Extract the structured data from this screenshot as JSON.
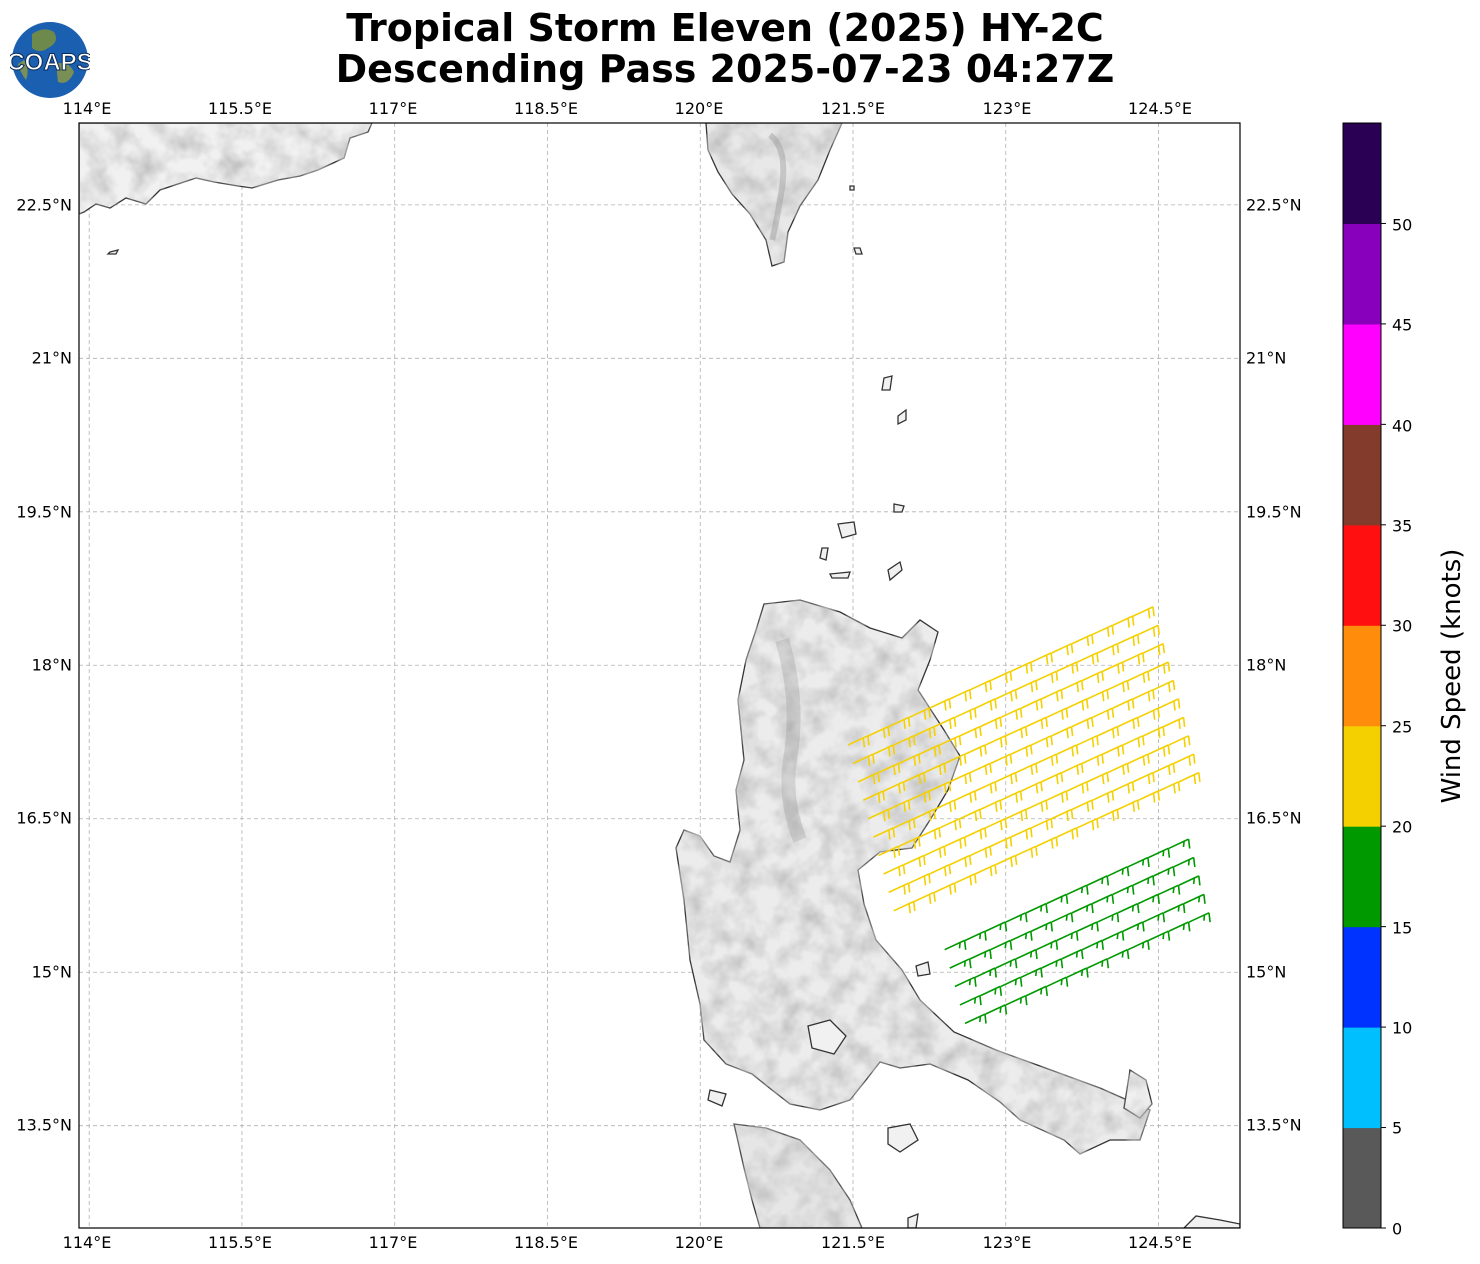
{
  "title": {
    "line1": "Tropical Storm Eleven (2025) HY-2C",
    "line2": "Descending Pass 2025-07-23 04:27Z"
  },
  "logo": {
    "text": "COAPS",
    "icon": "globe-logo-icon"
  },
  "map": {
    "lon_range": [
      113.9,
      125.3
    ],
    "lat_range": [
      12.5,
      23.3
    ],
    "lon_ticks": [
      "114°E",
      "115.5°E",
      "117°E",
      "118.5°E",
      "120°E",
      "121.5°E",
      "123°E",
      "124.5°E"
    ],
    "lat_ticks": [
      "22.5°N",
      "21°N",
      "19.5°N",
      "18°N",
      "16.5°N",
      "15°N",
      "13.5°N"
    ],
    "gridlines": true,
    "gridline_style": "dashed",
    "land_shading": "grayscale terrain",
    "barb_field": [
      {
        "lon_start": 121.9,
        "lat_start": 15.6,
        "lon_step": 0.2,
        "lat_step": 0.09,
        "rows": 10,
        "cols": 15,
        "row_lon_shift": -0.05,
        "row_lat_shift": 0.18,
        "kt": 21,
        "color": "#f5d000"
      },
      {
        "lon_start": 122.6,
        "lat_start": 14.5,
        "lon_step": 0.2,
        "lat_step": 0.09,
        "rows": 5,
        "cols": 12,
        "row_lon_shift": -0.05,
        "row_lat_shift": 0.18,
        "kt": 17,
        "color": "#009900"
      }
    ]
  },
  "colorbar": {
    "label": "Wind Speed (knots)",
    "min": 0,
    "max": 55,
    "ticks": [
      "0",
      "5",
      "10",
      "15",
      "20",
      "25",
      "30",
      "35",
      "40",
      "45",
      "50"
    ],
    "colors": [
      "#595959",
      "#00bfff",
      "#0033ff",
      "#009900",
      "#f5d000",
      "#ff8c0a",
      "#ff0f0f",
      "#833c2c",
      "#ff00ff",
      "#8800bb",
      "#2a0055"
    ]
  }
}
